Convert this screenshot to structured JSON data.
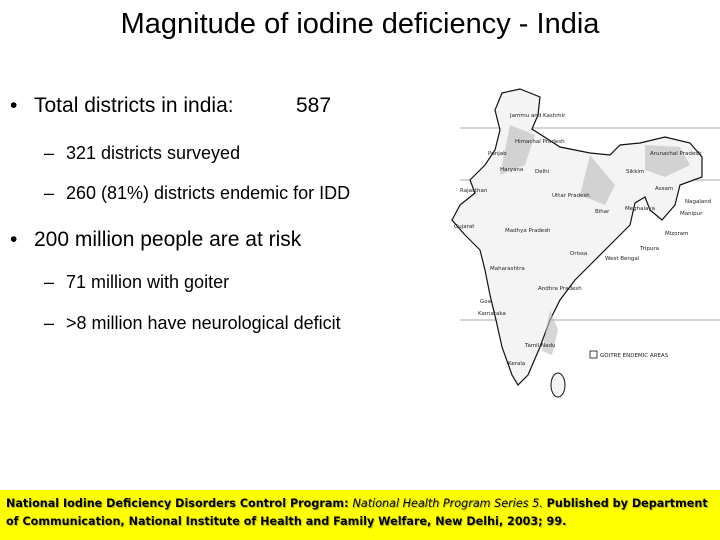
{
  "title": "Magnitude of iodine deficiency - India",
  "bullets": [
    {
      "text": "Total districts in india:",
      "value": "587",
      "sub": [
        "321 districts surveyed",
        "260 (81%) districts endemic for IDD"
      ]
    },
    {
      "text": "200 million people are at risk",
      "sub": [
        "71 million with goiter",
        ">8 million have neurological deficit"
      ]
    }
  ],
  "map": {
    "labels": [
      "Jammu and Kashmir",
      "Himachal Pradesh",
      "Punjab",
      "Haryana",
      "Delhi",
      "Sikkim",
      "Arunachal Pradesh",
      "Rajasthan",
      "Uttar Pradesh",
      "Bihar",
      "Assam",
      "Nagaland",
      "Manipur",
      "Meghalaya",
      "Mizoram",
      "Tripura",
      "West Bengal",
      "Gujarat",
      "Madhya Pradesh",
      "Orissa",
      "Maharashtra",
      "Andhra Pradesh",
      "Goa",
      "Karnataka",
      "Tamil Nadu",
      "Kerala"
    ],
    "legend": "GOITRE ENDEMIC AREAS"
  },
  "citation": {
    "source": "National Iodine Deficiency Disorders Control Program: ",
    "series": "National Health Program Series 5.",
    "details": " Published by Department of Communication, National Institute of Health and Family Welfare, New Delhi, 2003; 99."
  }
}
